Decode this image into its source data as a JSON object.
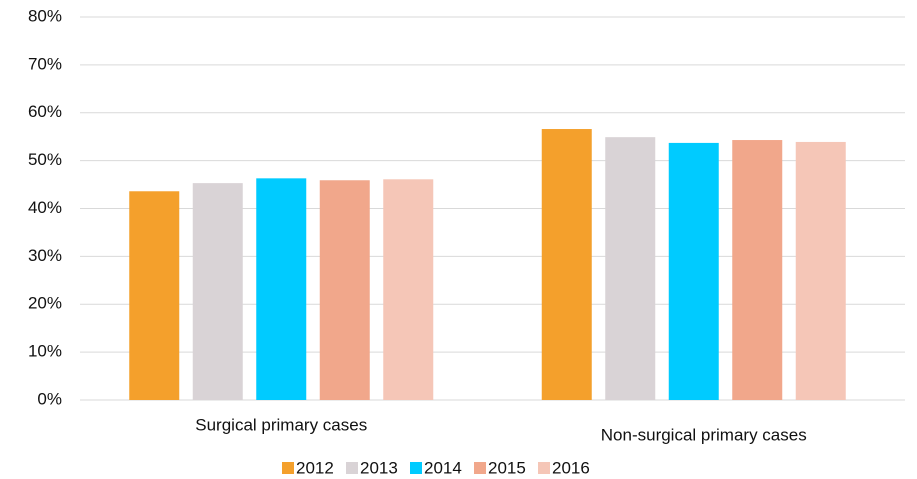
{
  "chart_data": {
    "type": "bar",
    "categories": [
      "Surgical primary cases",
      "Non-surgical primary cases"
    ],
    "series": [
      {
        "name": "2012",
        "color": "#f4a02c",
        "values": [
          43.6,
          56.6
        ]
      },
      {
        "name": "2013",
        "color": "#d9d3d6",
        "values": [
          45.3,
          54.9
        ]
      },
      {
        "name": "2014",
        "color": "#00cbff",
        "values": [
          46.3,
          53.7
        ]
      },
      {
        "name": "2015",
        "color": "#f1a78b",
        "values": [
          45.9,
          54.3
        ]
      },
      {
        "name": "2016",
        "color": "#f5c6b7",
        "values": [
          46.1,
          53.9
        ]
      }
    ],
    "ylim": [
      0,
      80
    ],
    "yticks": [
      {
        "value": 0,
        "label": "0%"
      },
      {
        "value": 10,
        "label": "10%"
      },
      {
        "value": 20,
        "label": "20%"
      },
      {
        "value": 30,
        "label": "30%"
      },
      {
        "value": 40,
        "label": "40%"
      },
      {
        "value": 50,
        "label": "50%"
      },
      {
        "value": 60,
        "label": "60%"
      },
      {
        "value": 70,
        "label": "70%"
      },
      {
        "value": 80,
        "label": "80%"
      }
    ],
    "grid": true,
    "legend": "bottom"
  }
}
